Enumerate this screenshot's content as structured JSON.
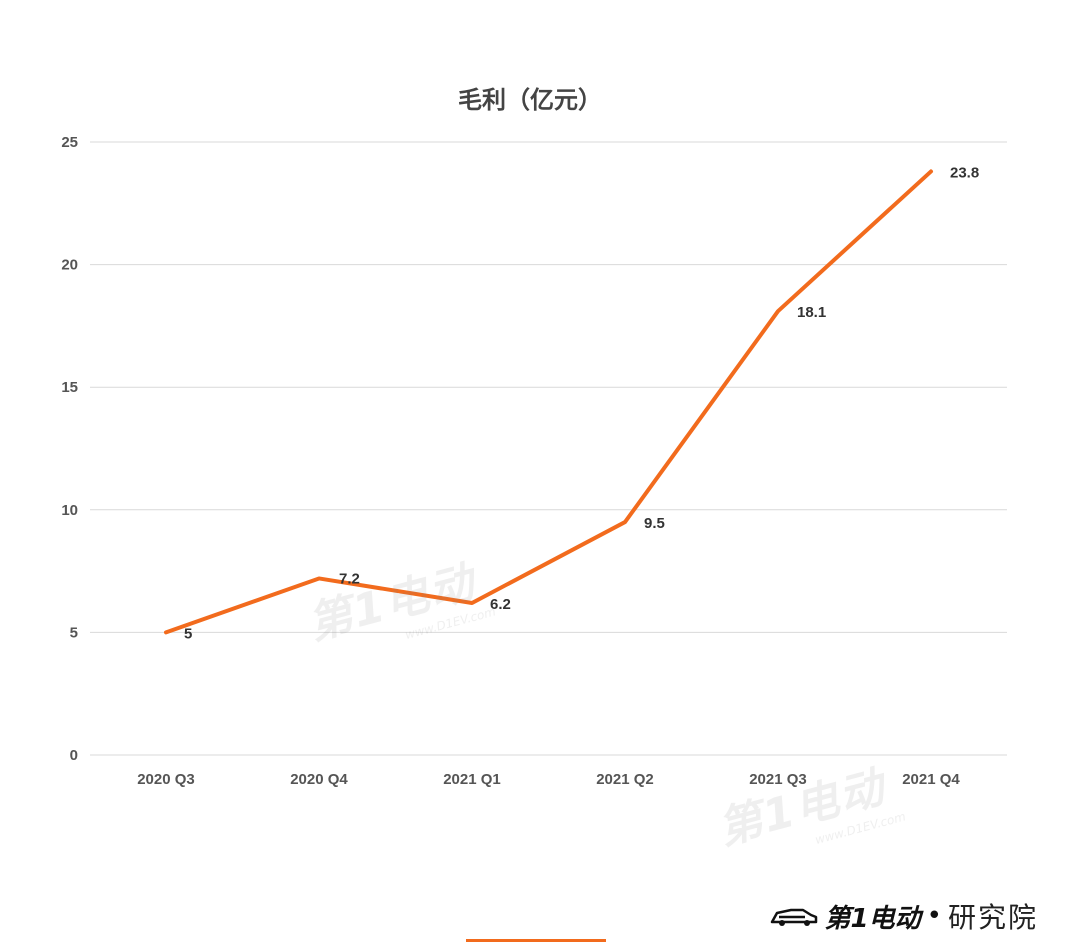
{
  "colors": {
    "line": "#f26b1d",
    "grid": "#d9d9d9",
    "title": "#444444",
    "tick": "#555555"
  },
  "chart_data": {
    "type": "line",
    "title": "毛利（亿元）",
    "xlabel": "",
    "ylabel": "",
    "categories": [
      "2020 Q3",
      "2020 Q4",
      "2021 Q1",
      "2021 Q2",
      "2021 Q3",
      "2021 Q4"
    ],
    "series": [
      {
        "values": [
          5,
          7.2,
          6.2,
          9.5,
          18.1,
          23.8
        ],
        "labels": [
          "5",
          "7.2",
          "6.2",
          "9.5",
          "18.1",
          "23.8"
        ]
      }
    ],
    "ylim": [
      0,
      25
    ],
    "yticks": [
      0,
      5,
      10,
      15,
      20,
      25
    ],
    "grid": true,
    "legend": "none"
  },
  "watermark": {
    "logo_text": "第1电动",
    "url_text": "www.D1EV.com"
  },
  "brand": {
    "logo_text": "第1电动",
    "separator": "•",
    "suffix": "研究院",
    "icon": "car-icon"
  }
}
